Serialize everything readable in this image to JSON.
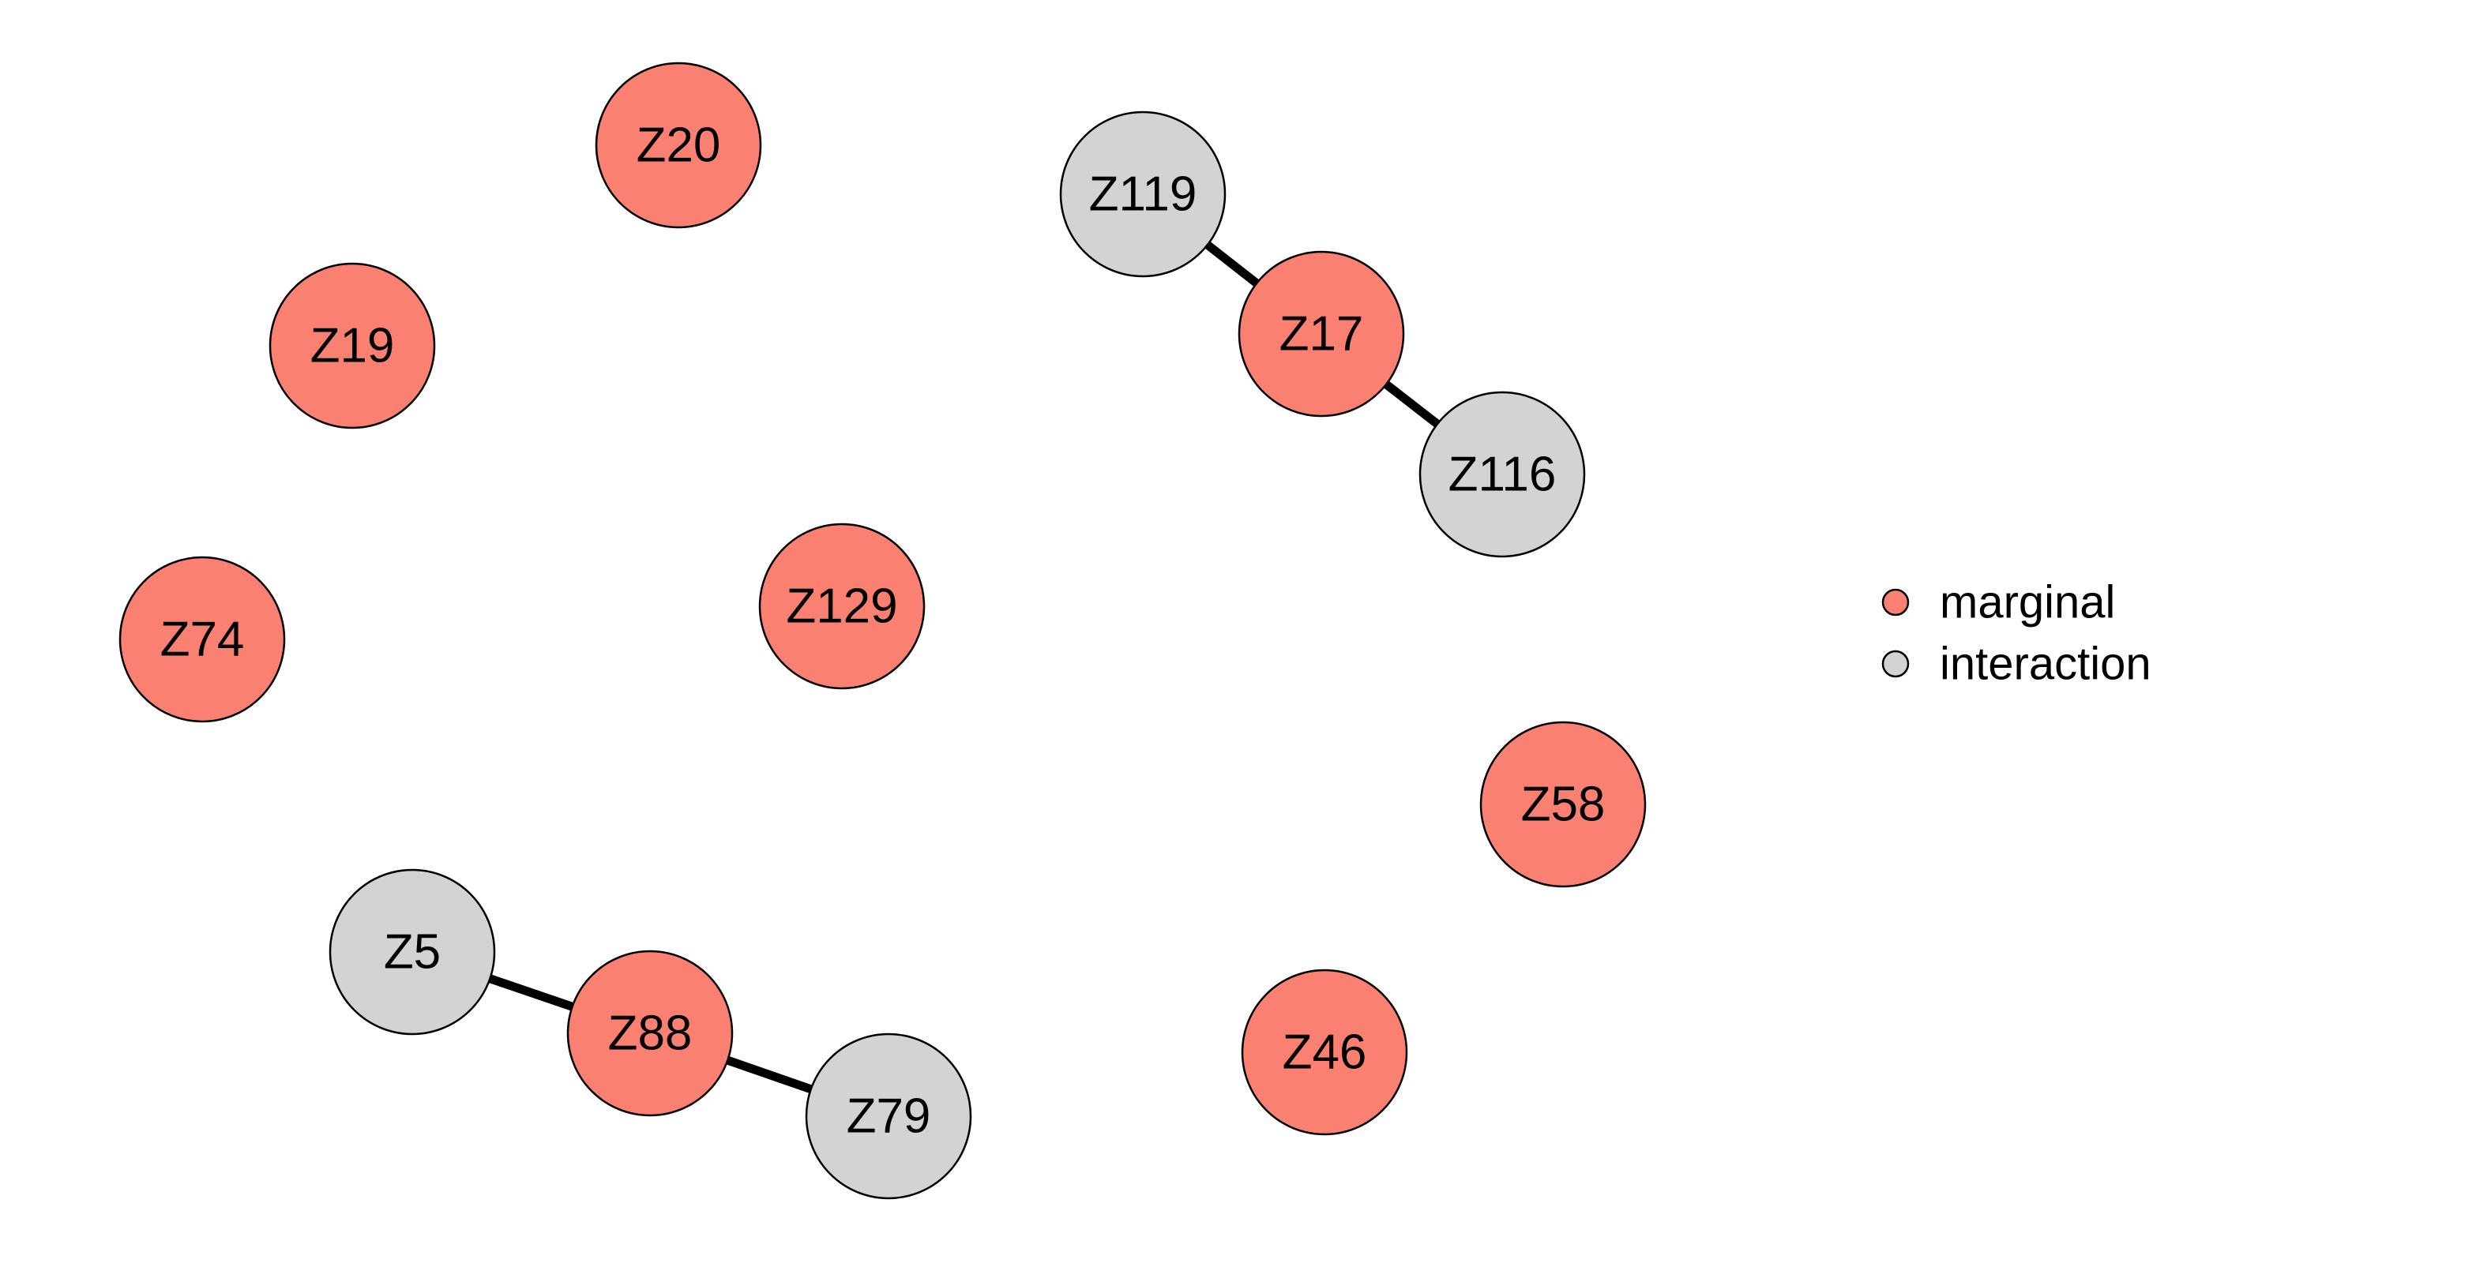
{
  "colors": {
    "marginal": "#FA8072",
    "interaction": "#D3D3D3",
    "stroke": "#000000",
    "edge": "#000000"
  },
  "legend": {
    "items": [
      {
        "key": "marginal",
        "label": "marginal"
      },
      {
        "key": "interaction",
        "label": "interaction"
      }
    ]
  },
  "nodes": [
    {
      "id": "Z20",
      "group": "marginal"
    },
    {
      "id": "Z119",
      "group": "interaction"
    },
    {
      "id": "Z19",
      "group": "marginal"
    },
    {
      "id": "Z17",
      "group": "marginal"
    },
    {
      "id": "Z116",
      "group": "interaction"
    },
    {
      "id": "Z74",
      "group": "marginal"
    },
    {
      "id": "Z129",
      "group": "marginal"
    },
    {
      "id": "Z58",
      "group": "marginal"
    },
    {
      "id": "Z5",
      "group": "interaction"
    },
    {
      "id": "Z88",
      "group": "marginal"
    },
    {
      "id": "Z46",
      "group": "marginal"
    },
    {
      "id": "Z79",
      "group": "interaction"
    }
  ],
  "edges": [
    {
      "source": "Z119",
      "target": "Z17"
    },
    {
      "source": "Z17",
      "target": "Z116"
    },
    {
      "source": "Z5",
      "target": "Z88"
    },
    {
      "source": "Z88",
      "target": "Z79"
    }
  ]
}
